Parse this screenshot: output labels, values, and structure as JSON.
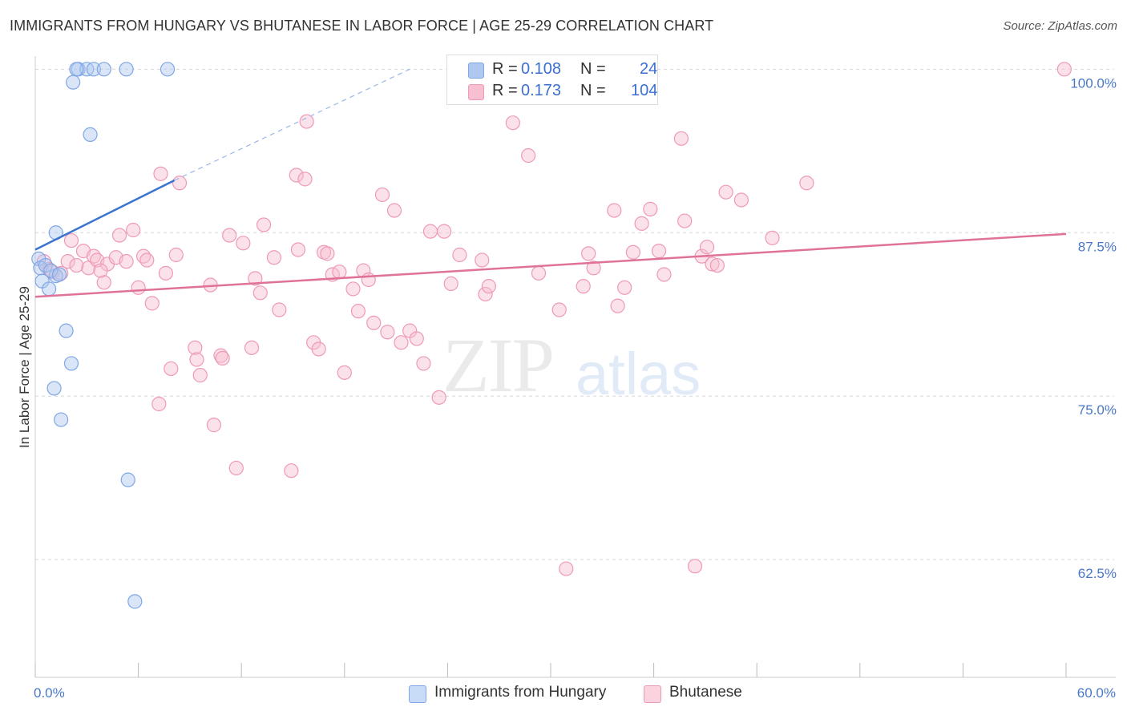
{
  "header": {
    "title": "IMMIGRANTS FROM HUNGARY VS BHUTANESE IN LABOR FORCE | AGE 25-29 CORRELATION CHART",
    "source": "Source: ZipAtlas.com"
  },
  "watermark": {
    "zip": "ZIP",
    "atlas": "atlas"
  },
  "legend": {
    "rows": [
      {
        "r_label": "R = ",
        "r_value": "0.108",
        "n_label": "N = ",
        "n_value": "24",
        "color": "#aec8f0",
        "border": "#7fa6e6"
      },
      {
        "r_label": "R = ",
        "r_value": "0.173",
        "n_label": "N = ",
        "n_value": "104",
        "color": "#f7bfd0",
        "border": "#ee9ab5"
      }
    ],
    "bottom": [
      {
        "label": "Immigrants from Hungary",
        "color": "#c9dcf7",
        "border": "#7fa6e6"
      },
      {
        "label": "Bhutanese",
        "color": "#fbd3df",
        "border": "#ee9ab5"
      }
    ]
  },
  "chart_data": {
    "type": "scatter",
    "title": "IMMIGRANTS FROM HUNGARY VS BHUTANESE IN LABOR FORCE | AGE 25-29 CORRELATION CHART",
    "xlabel": "",
    "ylabel": "In Labor Force | Age 25-29",
    "xlim": [
      0,
      60
    ],
    "ylim": [
      53.5,
      101
    ],
    "x_tick_labels": [
      {
        "value": 0,
        "label": "0.0%"
      },
      {
        "value": 60,
        "label": "60.0%"
      }
    ],
    "y_tick_labels": [
      {
        "value": 100,
        "label": "100.0%"
      },
      {
        "value": 87.5,
        "label": "87.5%"
      },
      {
        "value": 75,
        "label": "75.0%"
      },
      {
        "value": 62.5,
        "label": "62.5%"
      }
    ],
    "x_minor_ticks": [
      0,
      6,
      12,
      18,
      24,
      30,
      36,
      42,
      48,
      54,
      60
    ],
    "colors": {
      "hungary": "#3a74cf",
      "bhutanese": "#e0729a",
      "hungary_fill": "#c9dcf7",
      "bhutanese_fill": "#fbd3df"
    },
    "series": [
      {
        "name": "Immigrants from Hungary",
        "R": 0.108,
        "N": 24,
        "trend": {
          "x": [
            0,
            8.1
          ],
          "y": [
            86.2,
            91.5
          ],
          "dashed_to": [
            21.8,
            100.0
          ]
        },
        "points": [
          [
            0.2,
            85.5
          ],
          [
            0.3,
            84.8
          ],
          [
            0.4,
            83.8
          ],
          [
            0.8,
            83.2
          ],
          [
            1.2,
            84.2
          ],
          [
            0.6,
            85.0
          ],
          [
            0.9,
            84.6
          ],
          [
            1.2,
            87.5
          ],
          [
            1.8,
            80.0
          ],
          [
            2.1,
            77.5
          ],
          [
            1.1,
            75.6
          ],
          [
            1.5,
            73.2
          ],
          [
            3.2,
            95.0
          ],
          [
            2.2,
            99.0
          ],
          [
            2.5,
            100.0
          ],
          [
            3.0,
            100.0
          ],
          [
            2.4,
            100.0
          ],
          [
            3.4,
            100.0
          ],
          [
            4.0,
            100.0
          ],
          [
            5.3,
            100.0
          ],
          [
            7.7,
            100.0
          ],
          [
            5.4,
            68.6
          ],
          [
            5.8,
            59.3
          ],
          [
            1.4,
            84.3
          ]
        ]
      },
      {
        "name": "Bhutanese",
        "R": 0.173,
        "N": 104,
        "trend": {
          "x": [
            0,
            60
          ],
          "y": [
            82.6,
            87.4
          ]
        },
        "points": [
          [
            0.5,
            85.3
          ],
          [
            0.8,
            84.7
          ],
          [
            1.0,
            84.5
          ],
          [
            1.5,
            84.4
          ],
          [
            1.9,
            85.3
          ],
          [
            2.1,
            86.9
          ],
          [
            2.4,
            85.0
          ],
          [
            2.8,
            86.1
          ],
          [
            3.1,
            84.8
          ],
          [
            3.4,
            85.7
          ],
          [
            3.6,
            85.4
          ],
          [
            4.0,
            83.7
          ],
          [
            4.2,
            85.1
          ],
          [
            4.7,
            85.6
          ],
          [
            4.9,
            87.3
          ],
          [
            5.3,
            85.3
          ],
          [
            5.7,
            87.7
          ],
          [
            6.0,
            83.3
          ],
          [
            6.3,
            85.7
          ],
          [
            6.5,
            85.4
          ],
          [
            6.8,
            82.1
          ],
          [
            7.2,
            74.4
          ],
          [
            7.6,
            84.4
          ],
          [
            7.3,
            92.0
          ],
          [
            7.9,
            77.1
          ],
          [
            8.2,
            85.8
          ],
          [
            8.4,
            91.3
          ],
          [
            9.3,
            78.7
          ],
          [
            9.4,
            77.8
          ],
          [
            9.6,
            76.6
          ],
          [
            10.2,
            83.5
          ],
          [
            10.4,
            72.8
          ],
          [
            10.8,
            78.1
          ],
          [
            10.9,
            77.9
          ],
          [
            11.3,
            87.3
          ],
          [
            11.7,
            69.5
          ],
          [
            12.1,
            86.7
          ],
          [
            12.6,
            78.7
          ],
          [
            12.8,
            84.0
          ],
          [
            13.1,
            82.9
          ],
          [
            13.3,
            88.1
          ],
          [
            13.9,
            85.6
          ],
          [
            14.2,
            81.6
          ],
          [
            14.9,
            69.3
          ],
          [
            15.2,
            91.9
          ],
          [
            15.3,
            86.2
          ],
          [
            15.7,
            91.6
          ],
          [
            15.8,
            96.0
          ],
          [
            16.2,
            79.1
          ],
          [
            16.5,
            78.6
          ],
          [
            16.8,
            86.0
          ],
          [
            17.0,
            85.9
          ],
          [
            17.3,
            84.3
          ],
          [
            17.7,
            84.5
          ],
          [
            18.0,
            76.8
          ],
          [
            18.5,
            83.2
          ],
          [
            18.8,
            81.5
          ],
          [
            19.1,
            84.6
          ],
          [
            19.4,
            83.9
          ],
          [
            19.7,
            80.6
          ],
          [
            20.2,
            90.4
          ],
          [
            20.5,
            79.9
          ],
          [
            20.9,
            89.2
          ],
          [
            21.3,
            79.1
          ],
          [
            21.8,
            80.0
          ],
          [
            22.2,
            79.4
          ],
          [
            22.6,
            77.5
          ],
          [
            23.0,
            87.6
          ],
          [
            23.5,
            74.9
          ],
          [
            23.8,
            87.6
          ],
          [
            24.2,
            83.6
          ],
          [
            24.7,
            85.8
          ],
          [
            26.0,
            85.4
          ],
          [
            26.2,
            82.8
          ],
          [
            26.4,
            83.4
          ],
          [
            27.8,
            95.9
          ],
          [
            28.7,
            93.4
          ],
          [
            29.3,
            84.4
          ],
          [
            30.5,
            81.6
          ],
          [
            30.9,
            61.8
          ],
          [
            31.9,
            83.4
          ],
          [
            32.2,
            85.9
          ],
          [
            32.5,
            84.8
          ],
          [
            33.7,
            89.2
          ],
          [
            33.9,
            81.9
          ],
          [
            34.3,
            83.3
          ],
          [
            34.8,
            86.0
          ],
          [
            35.3,
            88.2
          ],
          [
            35.8,
            89.3
          ],
          [
            36.3,
            86.1
          ],
          [
            36.6,
            84.3
          ],
          [
            37.6,
            94.7
          ],
          [
            37.8,
            88.4
          ],
          [
            38.4,
            62.0
          ],
          [
            38.8,
            85.7
          ],
          [
            39.1,
            86.4
          ],
          [
            39.4,
            85.1
          ],
          [
            39.7,
            85.0
          ],
          [
            40.2,
            90.6
          ],
          [
            41.1,
            90.0
          ],
          [
            42.9,
            87.1
          ],
          [
            44.9,
            91.3
          ],
          [
            59.9,
            100.0
          ],
          [
            3.8,
            84.6
          ]
        ]
      }
    ]
  }
}
